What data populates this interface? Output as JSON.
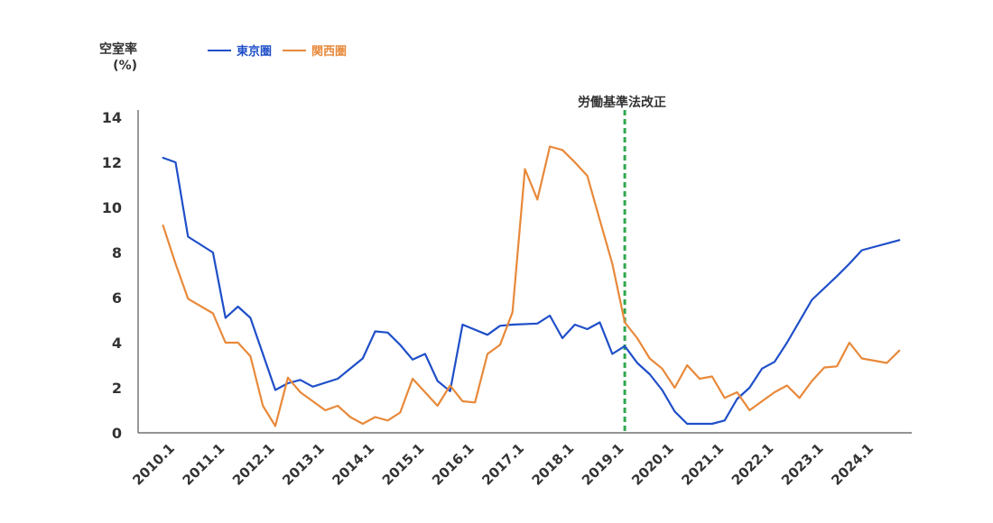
{
  "chart_data": {
    "type": "line",
    "ylabel_line1": "空室率",
    "ylabel_line2": "(%)",
    "ylim": [
      0,
      14
    ],
    "yticks": [
      0,
      2,
      4,
      6,
      8,
      10,
      12,
      14
    ],
    "x_tick_labels": [
      "2010.1",
      "2011.1",
      "2012.1",
      "2013.1",
      "2014.1",
      "2015.1",
      "2016.1",
      "2017.1",
      "2018.1",
      "2019.1",
      "2020.1",
      "2021.1",
      "2022.1",
      "2023.1",
      "2024.1"
    ],
    "legend_position": "top-left",
    "grid": false,
    "annotation": {
      "label": "労働基準法改正",
      "x": 2019.25
    },
    "series": [
      {
        "name": "東京圏",
        "color": "#1f4fc8",
        "points": [
          [
            2010.0,
            12.2
          ],
          [
            2010.25,
            12.0
          ],
          [
            2010.5,
            8.7
          ],
          [
            2011.0,
            8.0
          ],
          [
            2011.25,
            5.1
          ],
          [
            2011.5,
            5.6
          ],
          [
            2011.75,
            5.1
          ],
          [
            2012.0,
            3.5
          ],
          [
            2012.25,
            1.9
          ],
          [
            2012.5,
            2.2
          ],
          [
            2012.75,
            2.35
          ],
          [
            2013.0,
            2.05
          ],
          [
            2013.5,
            2.4
          ],
          [
            2014.0,
            3.3
          ],
          [
            2014.25,
            4.5
          ],
          [
            2014.5,
            4.45
          ],
          [
            2014.75,
            3.9
          ],
          [
            2015.0,
            3.25
          ],
          [
            2015.25,
            3.5
          ],
          [
            2015.5,
            2.3
          ],
          [
            2015.75,
            1.85
          ],
          [
            2016.0,
            4.8
          ],
          [
            2016.5,
            4.35
          ],
          [
            2016.75,
            4.75
          ],
          [
            2017.0,
            4.8
          ],
          [
            2017.5,
            4.85
          ],
          [
            2017.75,
            5.2
          ],
          [
            2018.0,
            4.2
          ],
          [
            2018.25,
            4.8
          ],
          [
            2018.5,
            4.6
          ],
          [
            2018.75,
            4.9
          ],
          [
            2019.0,
            3.5
          ],
          [
            2019.25,
            3.85
          ],
          [
            2019.5,
            3.1
          ],
          [
            2019.75,
            2.6
          ],
          [
            2020.0,
            1.9
          ],
          [
            2020.25,
            0.95
          ],
          [
            2020.5,
            0.4
          ],
          [
            2021.0,
            0.4
          ],
          [
            2021.25,
            0.55
          ],
          [
            2021.5,
            1.5
          ],
          [
            2021.75,
            2.0
          ],
          [
            2022.0,
            2.85
          ],
          [
            2022.25,
            3.15
          ],
          [
            2022.5,
            4.0
          ],
          [
            2023.0,
            5.9
          ],
          [
            2023.5,
            6.95
          ],
          [
            2023.75,
            7.5
          ],
          [
            2024.0,
            8.1
          ],
          [
            2024.75,
            8.55
          ]
        ]
      },
      {
        "name": "関西圏",
        "color": "#e8893a",
        "points": [
          [
            2010.0,
            9.2
          ],
          [
            2010.25,
            7.5
          ],
          [
            2010.5,
            5.95
          ],
          [
            2011.0,
            5.3
          ],
          [
            2011.25,
            4.0
          ],
          [
            2011.5,
            4.0
          ],
          [
            2011.75,
            3.4
          ],
          [
            2012.0,
            1.2
          ],
          [
            2012.25,
            0.3
          ],
          [
            2012.5,
            2.45
          ],
          [
            2012.75,
            1.8
          ],
          [
            2013.0,
            1.4
          ],
          [
            2013.25,
            1.0
          ],
          [
            2013.5,
            1.2
          ],
          [
            2013.75,
            0.7
          ],
          [
            2014.0,
            0.4
          ],
          [
            2014.25,
            0.7
          ],
          [
            2014.5,
            0.55
          ],
          [
            2014.75,
            0.9
          ],
          [
            2015.0,
            2.4
          ],
          [
            2015.25,
            1.8
          ],
          [
            2015.5,
            1.2
          ],
          [
            2015.75,
            2.1
          ],
          [
            2016.0,
            1.4
          ],
          [
            2016.25,
            1.35
          ],
          [
            2016.5,
            3.5
          ],
          [
            2016.75,
            3.9
          ],
          [
            2017.0,
            5.35
          ],
          [
            2017.25,
            11.7
          ],
          [
            2017.5,
            10.35
          ],
          [
            2017.75,
            12.7
          ],
          [
            2018.0,
            12.55
          ],
          [
            2018.25,
            12.0
          ],
          [
            2018.5,
            11.4
          ],
          [
            2018.75,
            9.45
          ],
          [
            2019.0,
            7.5
          ],
          [
            2019.25,
            4.9
          ],
          [
            2019.5,
            4.2
          ],
          [
            2019.75,
            3.3
          ],
          [
            2020.0,
            2.85
          ],
          [
            2020.25,
            2.0
          ],
          [
            2020.5,
            3.0
          ],
          [
            2020.75,
            2.4
          ],
          [
            2021.0,
            2.5
          ],
          [
            2021.25,
            1.55
          ],
          [
            2021.5,
            1.8
          ],
          [
            2021.75,
            1.0
          ],
          [
            2022.0,
            1.4
          ],
          [
            2022.25,
            1.8
          ],
          [
            2022.5,
            2.1
          ],
          [
            2022.75,
            1.55
          ],
          [
            2023.0,
            2.3
          ],
          [
            2023.25,
            2.9
          ],
          [
            2023.5,
            2.95
          ],
          [
            2023.75,
            4.0
          ],
          [
            2024.0,
            3.3
          ],
          [
            2024.5,
            3.1
          ],
          [
            2024.75,
            3.65
          ]
        ]
      }
    ]
  }
}
